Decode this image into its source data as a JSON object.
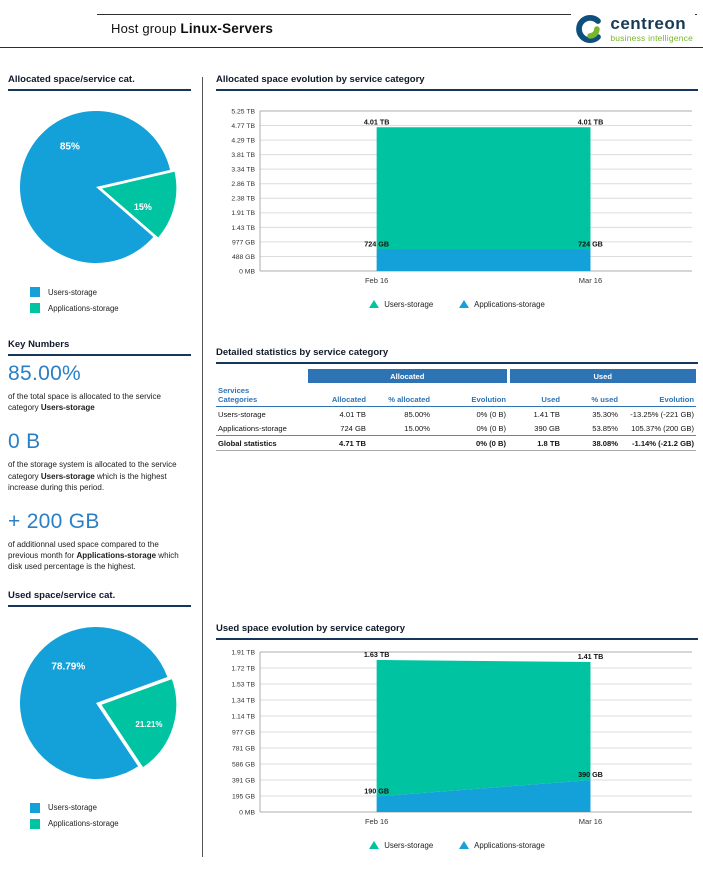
{
  "header": {
    "title_prefix": "Host group",
    "title_bold": "Linux-Servers",
    "logo": {
      "name": "centreon",
      "tagline": "business intelligence"
    }
  },
  "colors": {
    "series_blue": "#14a0d8",
    "series_teal": "#00c3a1",
    "accent_blue": "#2a7fc5",
    "table_blue": "#2e74b5",
    "rule_navy": "#16365c",
    "logo_green": "#76b82a",
    "logo_navy": "#173a56"
  },
  "sections": {
    "allocated_pie_title": "Allocated space/service cat.",
    "key_numbers_title": "Key Numbers",
    "used_pie_title": "Used space/service cat.",
    "allocated_evolution_title": "Allocated space evolution by service category",
    "detailed_stats_title": "Detailed statistics by service category",
    "used_evolution_title": "Used space evolution by service category"
  },
  "key_numbers": [
    {
      "value": "85.00%",
      "text_before": "of the total space is allocated to the service category",
      "bold": "Users-storage",
      "text_after": ""
    },
    {
      "value": "0 B",
      "text_before": "of the storage system is allocated to the service category",
      "bold": "Users-storage",
      "text_after": "which is the highest increase during this period."
    },
    {
      "value": "+ 200 GB",
      "text_before": "of additionnal used space compared to the previous month for",
      "bold": "Applications-storage",
      "text_after": "which disk used percentage is the highest."
    }
  ],
  "table": {
    "title": "Detailed statistics by service category",
    "group_headers": [
      "Allocated",
      "Used"
    ],
    "columns": [
      "Services Categories",
      "Allocated",
      "% allocated",
      "Evolution",
      "Used",
      "% used",
      "Evolution"
    ],
    "rows": [
      [
        "Users-storage",
        "4.01 TB",
        "85.00%",
        "0% (0 B)",
        "1.41 TB",
        "35.30%",
        "-13.25% (-221 GB)"
      ],
      [
        "Applications-storage",
        "724 GB",
        "15.00%",
        "0% (0 B)",
        "390 GB",
        "53.85%",
        "105.37% (200 GB)"
      ],
      [
        "Global statistics",
        "4.71 TB",
        "",
        "0% (0 B)",
        "1.8 TB",
        "38.08%",
        "-1.14% (-21.2 GB)"
      ]
    ]
  },
  "chart_data": [
    {
      "id": "allocated-pie",
      "type": "pie",
      "title": "Allocated space/service cat.",
      "labels": [
        "Users-storage",
        "Applications-storage"
      ],
      "values": [
        85,
        15
      ],
      "value_labels": [
        "85%",
        "15%"
      ],
      "colors": [
        "#14a0d8",
        "#00c3a1"
      ],
      "legend_position": "bottom-left"
    },
    {
      "id": "allocated-evolution",
      "type": "area",
      "stacked": true,
      "title": "Allocated space evolution by service category",
      "x": [
        "Feb 16",
        "Mar 16"
      ],
      "series": [
        {
          "name": "Applications-storage",
          "color": "#14a0d8",
          "values_gb": [
            724,
            724
          ],
          "point_labels": [
            "724 GB",
            "724 GB"
          ]
        },
        {
          "name": "Users-storage",
          "color": "#00c3a1",
          "values_gb": [
            4106,
            4106
          ],
          "point_labels": [
            "4.01 TB",
            "4.01 TB"
          ]
        }
      ],
      "y_ticks": [
        "5.25 TB",
        "4.77 TB",
        "4.29 TB",
        "3.81 TB",
        "3.34 TB",
        "2.86 TB",
        "2.38 TB",
        "1.91 TB",
        "1.43 TB",
        "977 GB",
        "488 GB",
        "0 MB"
      ],
      "y_max_gb": 5376,
      "grid": true,
      "legend": [
        "Users-storage",
        "Applications-storage"
      ],
      "legend_position": "bottom-center"
    },
    {
      "id": "used-pie",
      "type": "pie",
      "title": "Used space/service cat.",
      "labels": [
        "Users-storage",
        "Applications-storage"
      ],
      "values": [
        78.79,
        21.21
      ],
      "value_labels": [
        "78.79%",
        "21.21%"
      ],
      "colors": [
        "#14a0d8",
        "#00c3a1"
      ],
      "legend_position": "bottom-left"
    },
    {
      "id": "used-evolution",
      "type": "area",
      "stacked": true,
      "title": "Used space evolution by service category",
      "x": [
        "Feb 16",
        "Mar 16"
      ],
      "series": [
        {
          "name": "Applications-storage",
          "color": "#14a0d8",
          "values_gb": [
            190,
            390
          ],
          "point_labels": [
            "190 GB",
            "390 GB"
          ]
        },
        {
          "name": "Users-storage",
          "color": "#00c3a1",
          "values_gb": [
            1669,
            1444
          ],
          "point_labels": [
            "1.63 TB",
            "1.41 TB"
          ]
        }
      ],
      "y_ticks": [
        "1.91 TB",
        "1.72 TB",
        "1.53 TB",
        "1.34 TB",
        "1.14 TB",
        "977 GB",
        "781 GB",
        "586 GB",
        "391 GB",
        "195 GB",
        "0 MB"
      ],
      "y_max_gb": 1956,
      "grid": true,
      "legend": [
        "Users-storage",
        "Applications-storage"
      ],
      "legend_position": "bottom-center"
    }
  ]
}
